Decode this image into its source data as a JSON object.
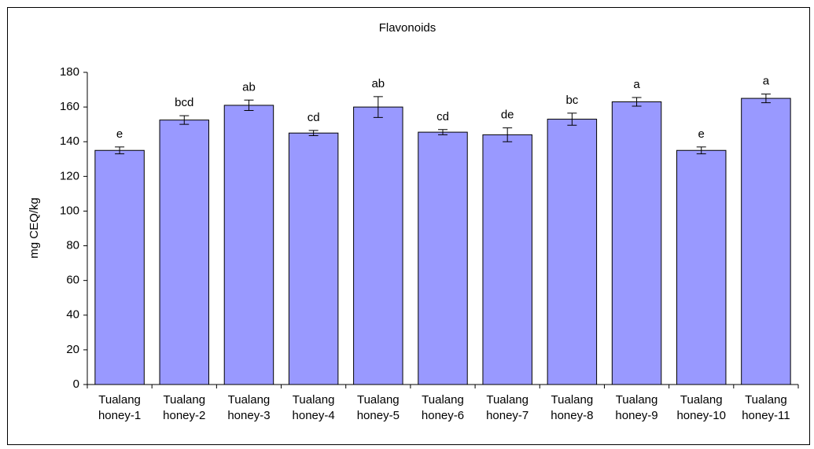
{
  "chart_data": {
    "type": "bar",
    "title": "Flavonoids",
    "y_label": "mg CEQ/kg",
    "categories": [
      "Tualang honey-1",
      "Tualang honey-2",
      "Tualang honey-3",
      "Tualang honey-4",
      "Tualang honey-5",
      "Tualang honey-6",
      "Tualang honey-7",
      "Tualang honey-8",
      "Tualang honey-9",
      "Tualang honey-10",
      "Tualang honey-11"
    ],
    "values": [
      135,
      152.5,
      161,
      145,
      160,
      145.5,
      144,
      153,
      163,
      135,
      165
    ],
    "errors": [
      2,
      2.5,
      3,
      1.5,
      6,
      1.5,
      4,
      3.5,
      2.5,
      2,
      2.5
    ],
    "annotations": [
      "e",
      "bcd",
      "ab",
      "cd",
      "ab",
      "cd",
      "de",
      "bc",
      "a",
      "e",
      "a"
    ],
    "color": "#9999ff",
    "ylim": [
      0,
      180
    ],
    "yticks": [
      0,
      20,
      40,
      60,
      80,
      100,
      120,
      140,
      160,
      180
    ],
    "grid": false
  }
}
